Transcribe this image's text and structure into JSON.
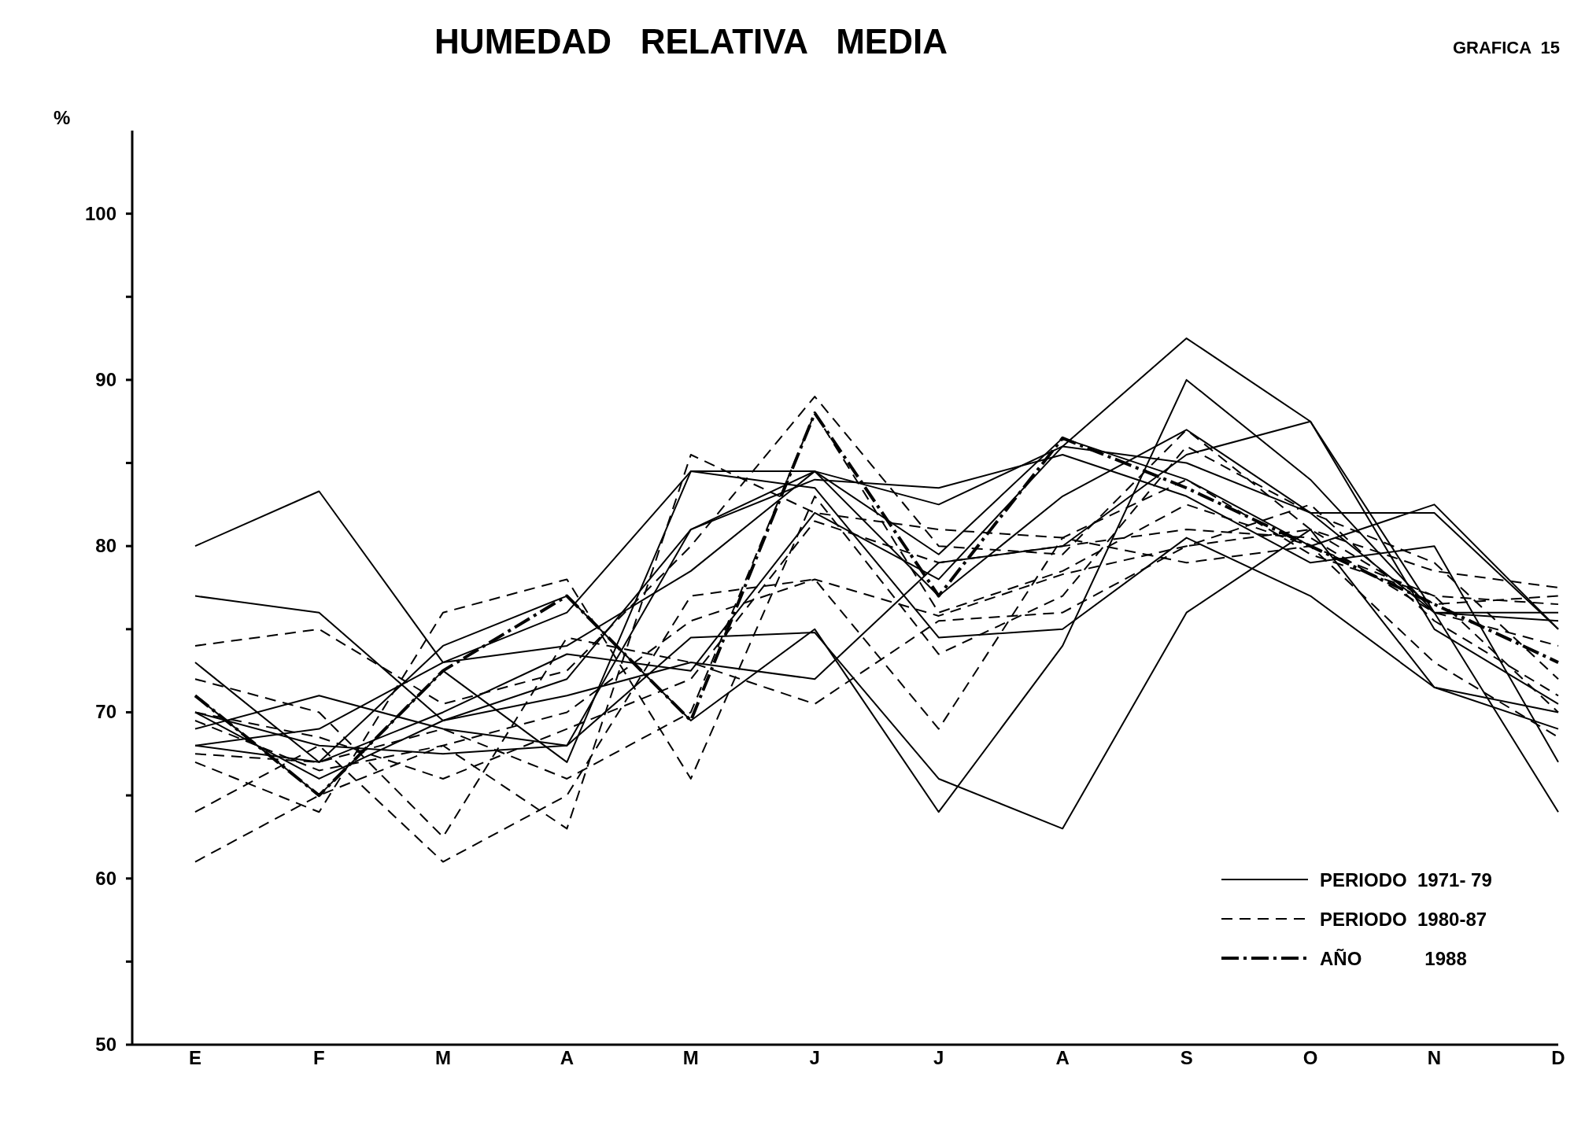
{
  "chart_data": {
    "type": "line",
    "title": "HUMEDAD   RELATIVA   MEDIA",
    "subtitle": "GRAFICA  15",
    "ylabel": "%",
    "categories": [
      "E",
      "F",
      "M",
      "A",
      "M",
      "J",
      "J",
      "A",
      "S",
      "O",
      "N",
      "D"
    ],
    "ylim": [
      50,
      105
    ],
    "yticks": [
      50,
      {
        "value": 55,
        "label": null
      },
      60,
      {
        "value": 65,
        "label": null
      },
      70,
      {
        "value": 75,
        "label": null
      },
      80,
      {
        "value": 85,
        "label": null
      },
      90,
      {
        "value": 95,
        "label": null
      },
      100
    ],
    "grid": false,
    "legend": "bottom right",
    "marker": "none",
    "series": [
      {
        "name": "PERIODO  1971- 79",
        "color": "#000000",
        "line_style": "solid",
        "values": [
          80,
          83.3,
          73,
          76,
          84.5,
          84.5,
          82.5,
          86,
          92.5,
          87.5,
          76,
          64
        ]
      },
      {
        "color": "#000000",
        "line_style": "solid",
        "values": [
          77,
          76,
          69.5,
          72,
          81,
          84.5,
          79.5,
          86.5,
          84,
          80,
          82.5,
          75
        ]
      },
      {
        "color": "#000000",
        "line_style": "solid",
        "values": [
          73,
          67,
          74,
          77,
          69.5,
          75,
          64,
          74,
          90,
          84,
          76,
          75.5
        ]
      },
      {
        "color": "#000000",
        "line_style": "solid",
        "values": [
          70,
          68,
          67.5,
          68,
          74.5,
          74.8,
          66,
          63,
          76,
          81,
          71.5,
          70
        ]
      },
      {
        "color": "#000000",
        "line_style": "solid",
        "values": [
          68,
          69,
          73,
          74,
          78.5,
          84.5,
          77,
          83,
          87,
          82,
          76,
          76
        ]
      },
      {
        "color": "#000000",
        "line_style": "solid",
        "values": [
          71,
          65,
          72.5,
          67,
          84.5,
          83.5,
          74.5,
          75,
          80.5,
          77,
          71.5,
          69
        ]
      },
      {
        "color": "#000000",
        "line_style": "solid",
        "values": [
          68,
          67,
          70,
          73.5,
          72.5,
          82,
          78,
          86,
          85,
          82,
          82,
          75
        ]
      },
      {
        "color": "#000000",
        "line_style": "solid",
        "values": [
          69,
          71,
          69,
          68,
          81,
          84,
          83.5,
          85.5,
          83,
          79,
          80,
          67
        ]
      },
      {
        "color": "#000000",
        "line_style": "solid",
        "values": [
          70,
          66,
          69.5,
          71,
          73,
          72,
          79,
          80,
          85.5,
          87.5,
          75,
          70.5
        ]
      },
      {
        "name": "PERIODO  1980-87",
        "color": "#000000",
        "line_style": "dashed",
        "values": [
          74,
          75,
          70.5,
          72.5,
          80,
          89,
          80,
          79.5,
          87,
          81,
          78.5,
          77.5
        ]
      },
      {
        "color": "#000000",
        "line_style": "dashed",
        "values": [
          67,
          64,
          76,
          78,
          66,
          83,
          73.5,
          77,
          86,
          82,
          79,
          72
        ]
      },
      {
        "color": "#000000",
        "line_style": "dashed",
        "values": [
          61,
          65,
          68,
          63,
          85.5,
          82,
          81,
          80.5,
          79,
          80,
          73,
          68.5
        ]
      },
      {
        "color": "#000000",
        "line_style": "dashed",
        "values": [
          64,
          68,
          61,
          65,
          77,
          78,
          69,
          80.5,
          84,
          79.5,
          77,
          70
        ]
      },
      {
        "color": "#000000",
        "line_style": "dashed",
        "values": [
          72,
          70,
          62.5,
          74.5,
          73,
          70.5,
          75.5,
          76,
          80,
          81,
          76.5,
          77
        ]
      },
      {
        "color": "#000000",
        "line_style": "dashed",
        "values": [
          67.5,
          67,
          69,
          66,
          70,
          88,
          76,
          78.5,
          82.5,
          80,
          77,
          76.5
        ]
      },
      {
        "color": "#000000",
        "line_style": "dashed",
        "values": [
          69.5,
          66.5,
          68,
          70,
          75.5,
          78,
          75.8,
          78.3,
          80,
          82.5,
          75.5,
          71
        ]
      },
      {
        "color": "#000000",
        "line_style": "dashed",
        "values": [
          70,
          68.5,
          66,
          69,
          72,
          81.5,
          79,
          80,
          81,
          80.5,
          76,
          74
        ]
      },
      {
        "name": "AÑO            1988",
        "color": "#000000",
        "line_style": "dashdot",
        "values": [
          71,
          65,
          72.5,
          77,
          69.5,
          88,
          77,
          86.5,
          83.5,
          80,
          76.5,
          73
        ]
      }
    ]
  }
}
